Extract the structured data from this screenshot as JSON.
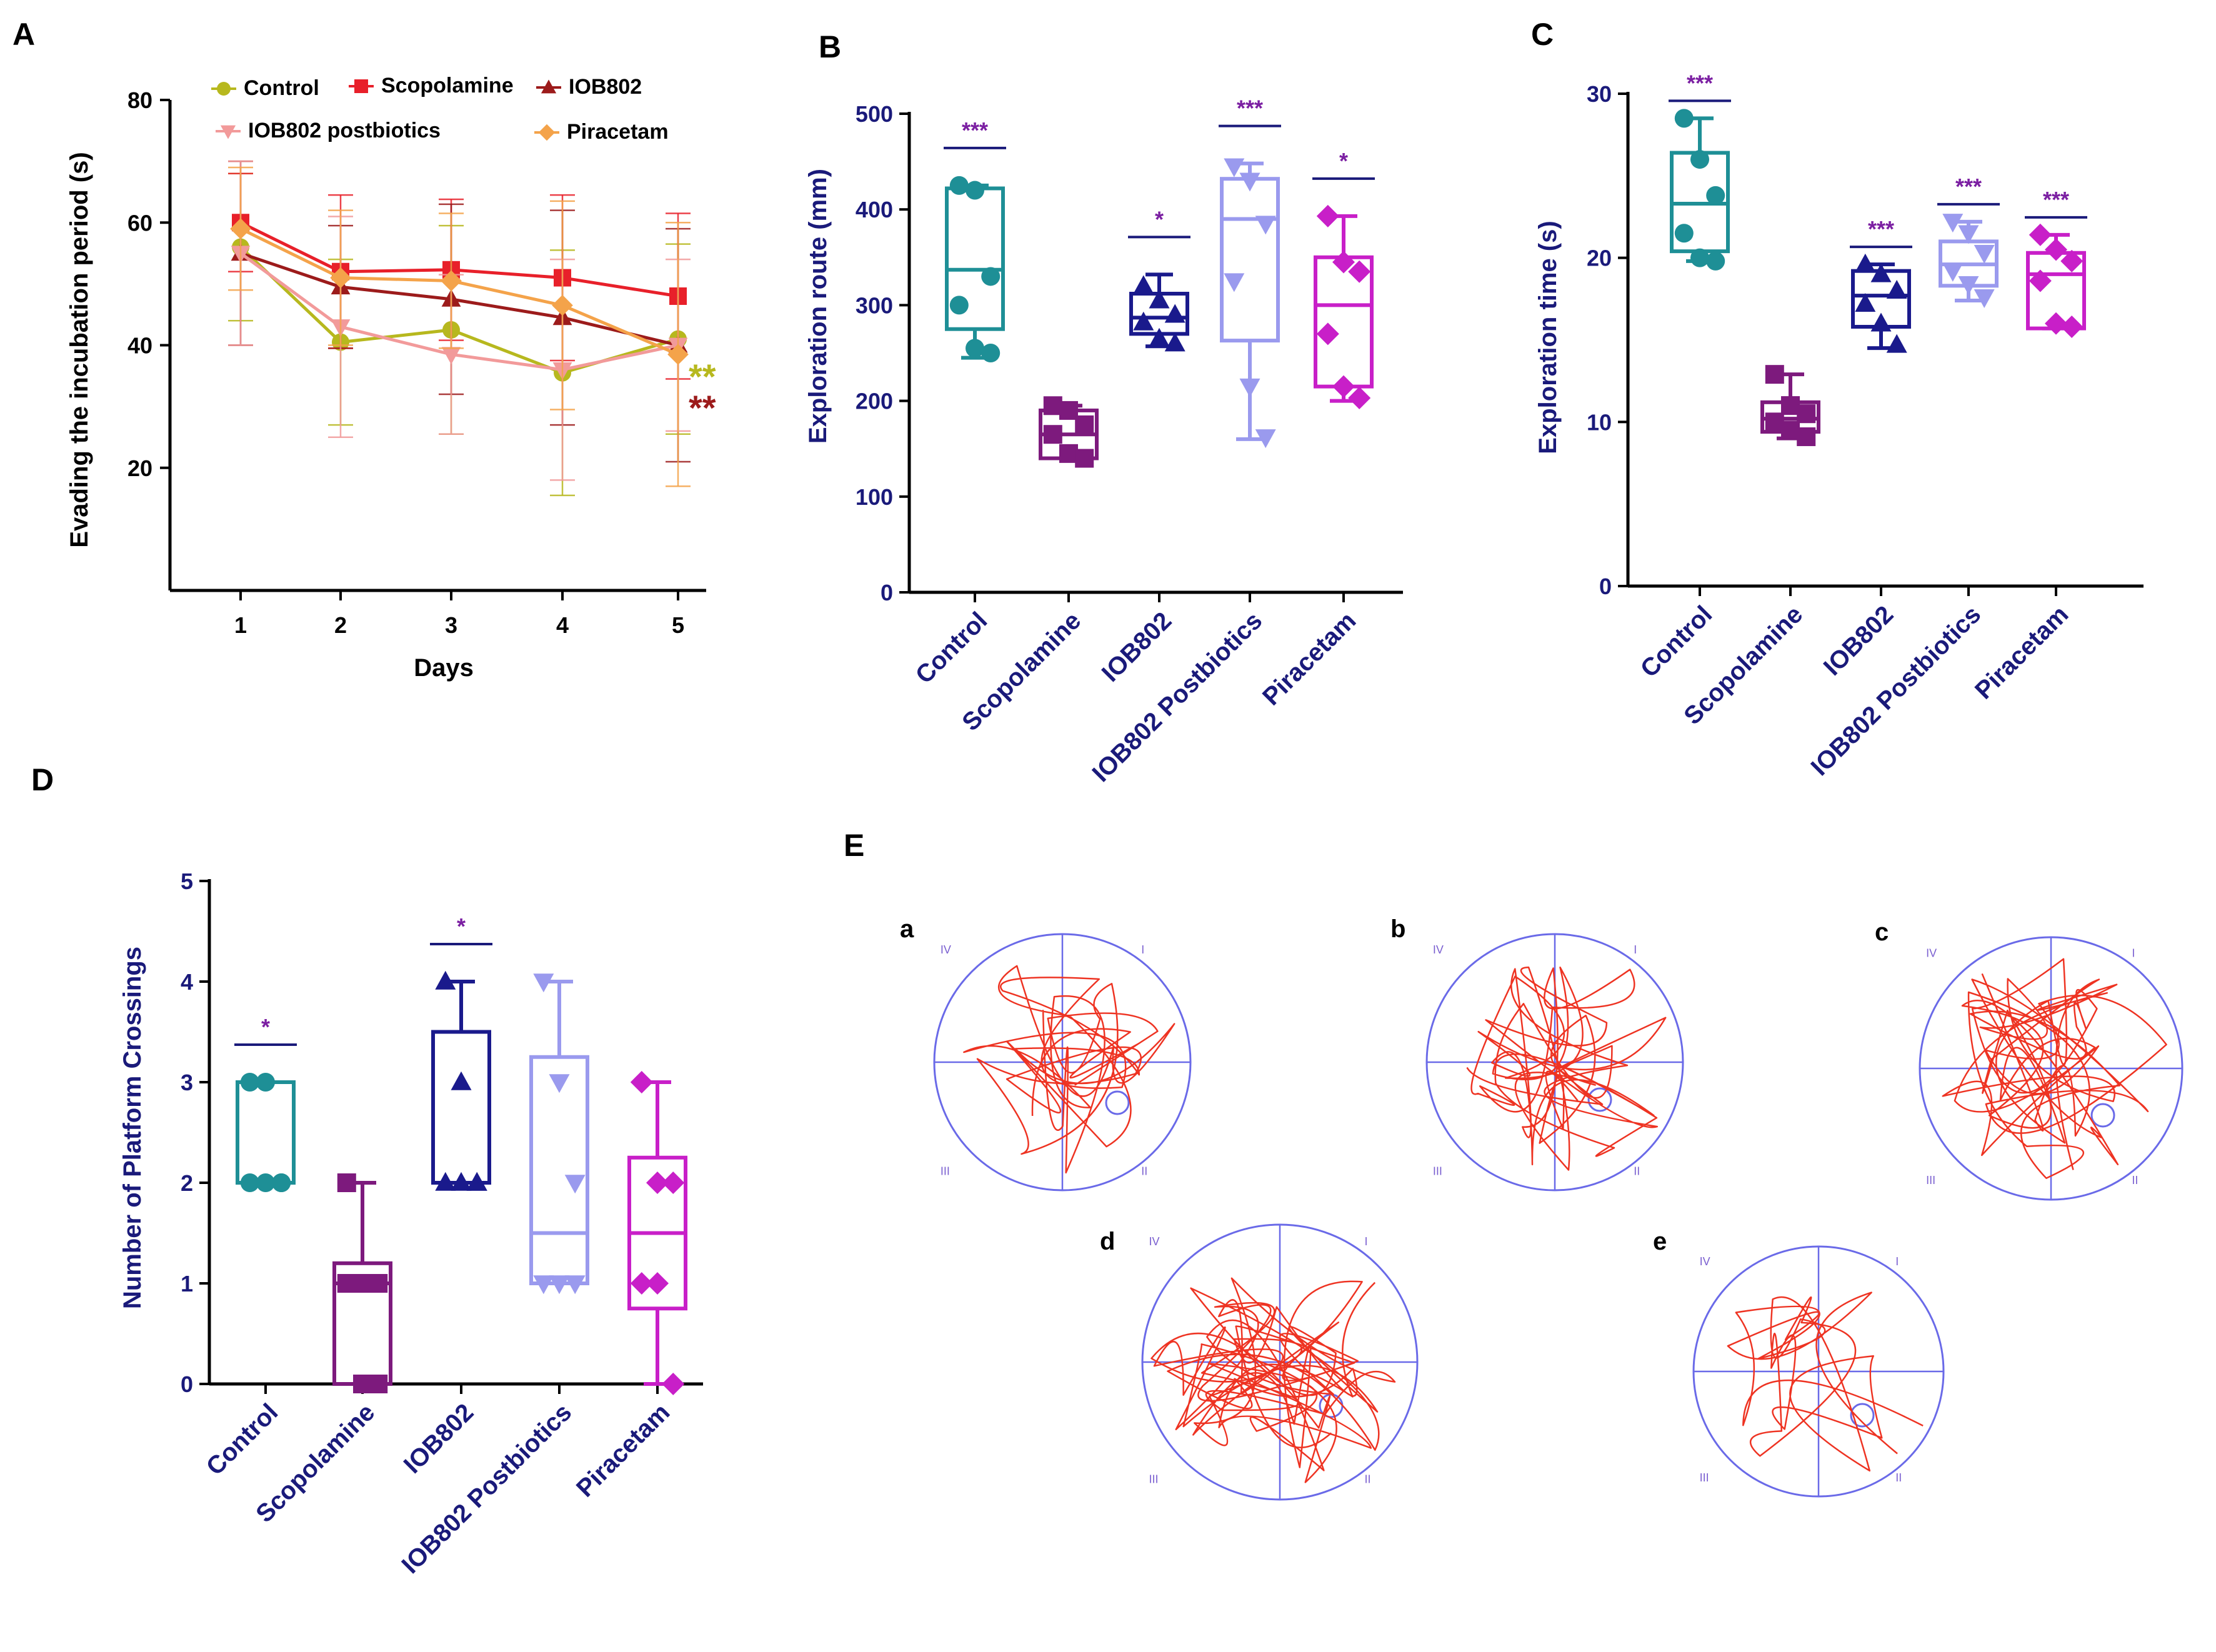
{
  "panel_labels": {
    "a": "A",
    "b": "B",
    "c": "C",
    "d": "D",
    "e": "E"
  },
  "colors": {
    "axis_navy": "#1a1a7a",
    "significance": "#7b1fa2",
    "control_box": "#1e8f96",
    "scopolamine_box": "#7d1a7d",
    "iob802_box": "#1a1a8c",
    "postbiotics_box": "#9a9aee",
    "piracetam_box": "#c81fc8",
    "line_control": "#b7b81e",
    "line_scopolamine": "#e8202a",
    "line_iob802": "#9c1b1b",
    "line_postbiotics": "#f29a9a",
    "line_piracetam": "#f4a34a",
    "track": "#ee3322",
    "pool": "#6a6ae8"
  },
  "chart_data": [
    {
      "panel": "A",
      "type": "line",
      "title": "",
      "xlabel": "Days",
      "ylabel": "Evading the incubation period (s)",
      "x": [
        1,
        2,
        3,
        4,
        5
      ],
      "xticks": [
        "1",
        "2",
        "3",
        "4",
        "5"
      ],
      "yticks": [
        "20",
        "40",
        "60",
        "80"
      ],
      "ylim": [
        0,
        80
      ],
      "series": [
        {
          "name": "Control",
          "values": [
            56,
            40.5,
            42.5,
            35.5,
            41
          ],
          "error": [
            12,
            13.5,
            17,
            20,
            15.5
          ],
          "marker": "circle",
          "color": "#b7b81e"
        },
        {
          "name": "Scopolamine",
          "values": [
            60,
            52,
            52.3,
            51,
            48
          ],
          "error": [
            8,
            12.5,
            11.5,
            13.5,
            13.5
          ],
          "marker": "square",
          "color": "#e8202a"
        },
        {
          "name": "IOB802",
          "values": [
            55,
            49.5,
            47.5,
            44.5,
            40
          ],
          "error": [
            15,
            10,
            15.5,
            17.5,
            19
          ],
          "marker": "triangle",
          "color": "#9c1b1b"
        },
        {
          "name": "IOB802 postbiotics",
          "values": [
            55,
            43,
            38.5,
            36,
            40
          ],
          "error": [
            15,
            18,
            13,
            18,
            14
          ],
          "marker": "triangle-down",
          "color": "#f29a9a"
        },
        {
          "name": "Piracetam",
          "values": [
            59,
            51,
            50.5,
            46.5,
            38.5
          ],
          "error": [
            10,
            11,
            11,
            17,
            21.5
          ],
          "marker": "diamond",
          "color": "#f4a34a"
        }
      ],
      "annotations": [
        {
          "text": "**",
          "color": "#b7b81e"
        },
        {
          "text": "**",
          "color": "#9c1b1b"
        }
      ]
    },
    {
      "panel": "B",
      "type": "box",
      "ylabel": "Exploration route (mm)",
      "ylim": [
        0,
        500
      ],
      "yticks": [
        "0",
        "100",
        "200",
        "300",
        "400",
        "500"
      ],
      "categories": [
        "Control",
        "Scopolamine",
        "IOB802",
        "IOB802 Postbiotics",
        "Piracetam"
      ],
      "boxes": [
        {
          "min": 245,
          "q1": 275,
          "median": 337,
          "q3": 422,
          "max": 425,
          "points": [
            425,
            420,
            330,
            300,
            255,
            250
          ],
          "sig": "***",
          "color": "#1e8f96",
          "marker": "circle"
        },
        {
          "min": 140,
          "q1": 140,
          "median": 165,
          "q3": 190,
          "max": 195,
          "points": [
            195,
            190,
            175,
            165,
            145,
            140
          ],
          "sig": "",
          "color": "#7d1a7d",
          "marker": "square"
        },
        {
          "min": 257,
          "q1": 270,
          "median": 287,
          "q3": 312,
          "max": 332,
          "points": [
            320,
            305,
            290,
            282,
            265,
            260
          ],
          "sig": "*",
          "color": "#1a1a8c",
          "marker": "triangle"
        },
        {
          "min": 160,
          "q1": 263,
          "median": 390,
          "q3": 432,
          "max": 448,
          "points": [
            445,
            430,
            385,
            325,
            215,
            162
          ],
          "sig": "***",
          "color": "#9a9aee",
          "marker": "triangle-down"
        },
        {
          "min": 200,
          "q1": 215,
          "median": 300,
          "q3": 350,
          "max": 393,
          "points": [
            393,
            345,
            335,
            270,
            215,
            203
          ],
          "sig": "*",
          "color": "#c81fc8",
          "marker": "diamond"
        }
      ]
    },
    {
      "panel": "C",
      "type": "box",
      "ylabel": "Exploration time (s)",
      "ylim": [
        0,
        30
      ],
      "yticks": [
        "0",
        "10",
        "20",
        "30"
      ],
      "categories": [
        "Control",
        "Scopolamine",
        "IOB802",
        "IOB802 Postbiotics",
        "Piracetam"
      ],
      "boxes": [
        {
          "min": 19.8,
          "q1": 20.4,
          "median": 23.3,
          "q3": 26.4,
          "max": 28.5,
          "points": [
            28.5,
            26.0,
            23.8,
            21.5,
            20.0,
            19.8
          ],
          "sig": "***",
          "color": "#1e8f96",
          "marker": "circle"
        },
        {
          "min": 9.0,
          "q1": 9.4,
          "median": 10.2,
          "q3": 11.2,
          "max": 12.9,
          "points": [
            12.9,
            11.0,
            10.5,
            10.0,
            9.5,
            9.1
          ],
          "sig": "",
          "color": "#7d1a7d",
          "marker": "square"
        },
        {
          "min": 14.5,
          "q1": 15.8,
          "median": 17.7,
          "q3": 19.2,
          "max": 19.6,
          "points": [
            19.6,
            19.0,
            18.0,
            17.2,
            16.0,
            14.7
          ],
          "sig": "***",
          "color": "#1a1a8c",
          "marker": "triangle"
        },
        {
          "min": 17.4,
          "q1": 18.3,
          "median": 19.6,
          "q3": 21.0,
          "max": 22.2,
          "points": [
            22.2,
            21.5,
            20.3,
            19.2,
            18.4,
            17.6
          ],
          "sig": "***",
          "color": "#9a9aee",
          "marker": "triangle-down"
        },
        {
          "min": 15.7,
          "q1": 15.7,
          "median": 19.0,
          "q3": 20.3,
          "max": 21.4,
          "points": [
            21.4,
            20.5,
            19.8,
            18.6,
            16.0,
            15.8
          ],
          "sig": "***",
          "color": "#c81fc8",
          "marker": "diamond"
        }
      ]
    },
    {
      "panel": "D",
      "type": "box",
      "ylabel": "Number of Platform Crossings",
      "ylim": [
        0,
        5
      ],
      "yticks": [
        "0",
        "1",
        "2",
        "3",
        "4",
        "5"
      ],
      "categories": [
        "Control",
        "Scopolamine",
        "IOB802",
        "IOB802 Postbiotics",
        "Piracetam"
      ],
      "boxes": [
        {
          "min": 2,
          "q1": 2,
          "median": 2,
          "q3": 3,
          "max": 3,
          "points": [
            3,
            3,
            2,
            2,
            2,
            2
          ],
          "sig": "*",
          "color": "#1e8f96",
          "marker": "circle"
        },
        {
          "min": 0,
          "q1": 0,
          "median": 1,
          "q3": 1.2,
          "max": 2,
          "points": [
            2,
            1,
            1,
            1,
            0,
            0
          ],
          "sig": "",
          "color": "#7d1a7d",
          "marker": "square"
        },
        {
          "min": 2,
          "q1": 2,
          "median": 2,
          "q3": 3.5,
          "max": 4,
          "points": [
            4,
            3,
            2,
            2,
            2,
            2
          ],
          "sig": "*",
          "color": "#1a1a8c",
          "marker": "triangle"
        },
        {
          "min": 1,
          "q1": 1,
          "median": 1.5,
          "q3": 3.25,
          "max": 4,
          "points": [
            4,
            3,
            2,
            1,
            1,
            1
          ],
          "sig": "",
          "color": "#9a9aee",
          "marker": "triangle-down"
        },
        {
          "min": 0,
          "q1": 0.75,
          "median": 1.5,
          "q3": 2.25,
          "max": 3,
          "points": [
            3,
            2,
            2,
            1,
            1,
            0
          ],
          "sig": "",
          "color": "#c81fc8",
          "marker": "diamond"
        }
      ]
    }
  ],
  "tracks": {
    "quadrants": [
      "I",
      "II",
      "III",
      "IV"
    ],
    "items": [
      {
        "label": "a"
      },
      {
        "label": "b"
      },
      {
        "label": "c"
      },
      {
        "label": "d"
      },
      {
        "label": "e"
      }
    ]
  }
}
